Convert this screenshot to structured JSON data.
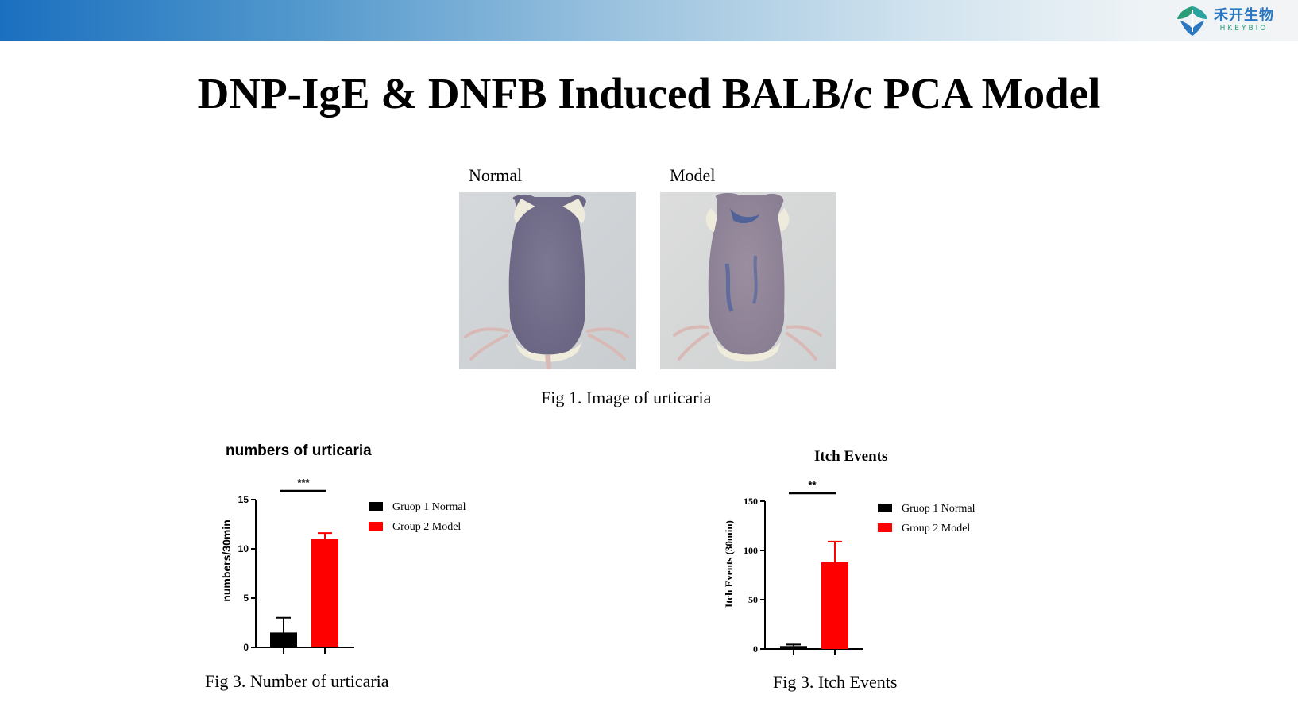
{
  "header": {
    "logo_cn": "禾开生物",
    "logo_en": "HKEYBIO",
    "gradient": [
      "#1a6fbf",
      "#f2f4f5"
    ]
  },
  "title": "DNP-IgE & DNFB Induced BALB/c PCA Model",
  "fig1": {
    "labels": [
      "Normal",
      "Model"
    ],
    "caption": "Fig 1. Image of urticaria"
  },
  "colors": {
    "group1": "#000000",
    "group2": "#ff0000"
  },
  "chart_data": [
    {
      "type": "bar",
      "title": "numbers of urticaria",
      "ylabel": "numbers/30min",
      "xlabel": "",
      "categories": [
        "Gruop 1 Normal",
        "Group 2 Model"
      ],
      "values": [
        1.5,
        11
      ],
      "errors": [
        1.5,
        0.6
      ],
      "ylim": [
        0,
        15
      ],
      "yticks": [
        "0",
        "5",
        "10",
        "15"
      ],
      "significance": "***",
      "legend": [
        "Gruop 1 Normal",
        "Group 2 Model"
      ],
      "legend_position": "right",
      "caption": "Fig 3. Number of urticaria"
    },
    {
      "type": "bar",
      "title": "Itch Events",
      "ylabel": "Itch Events (30min)",
      "xlabel": "",
      "categories": [
        "Gruop 1 Normal",
        "Group 2 Model"
      ],
      "values": [
        3,
        88
      ],
      "errors": [
        1.5,
        21
      ],
      "ylim": [
        0,
        150
      ],
      "yticks": [
        "0",
        "50",
        "100",
        "150"
      ],
      "significance": "**",
      "legend": [
        "Gruop 1 Normal",
        "Group 2 Model"
      ],
      "legend_position": "right",
      "caption": "Fig 3. Itch Events"
    }
  ]
}
